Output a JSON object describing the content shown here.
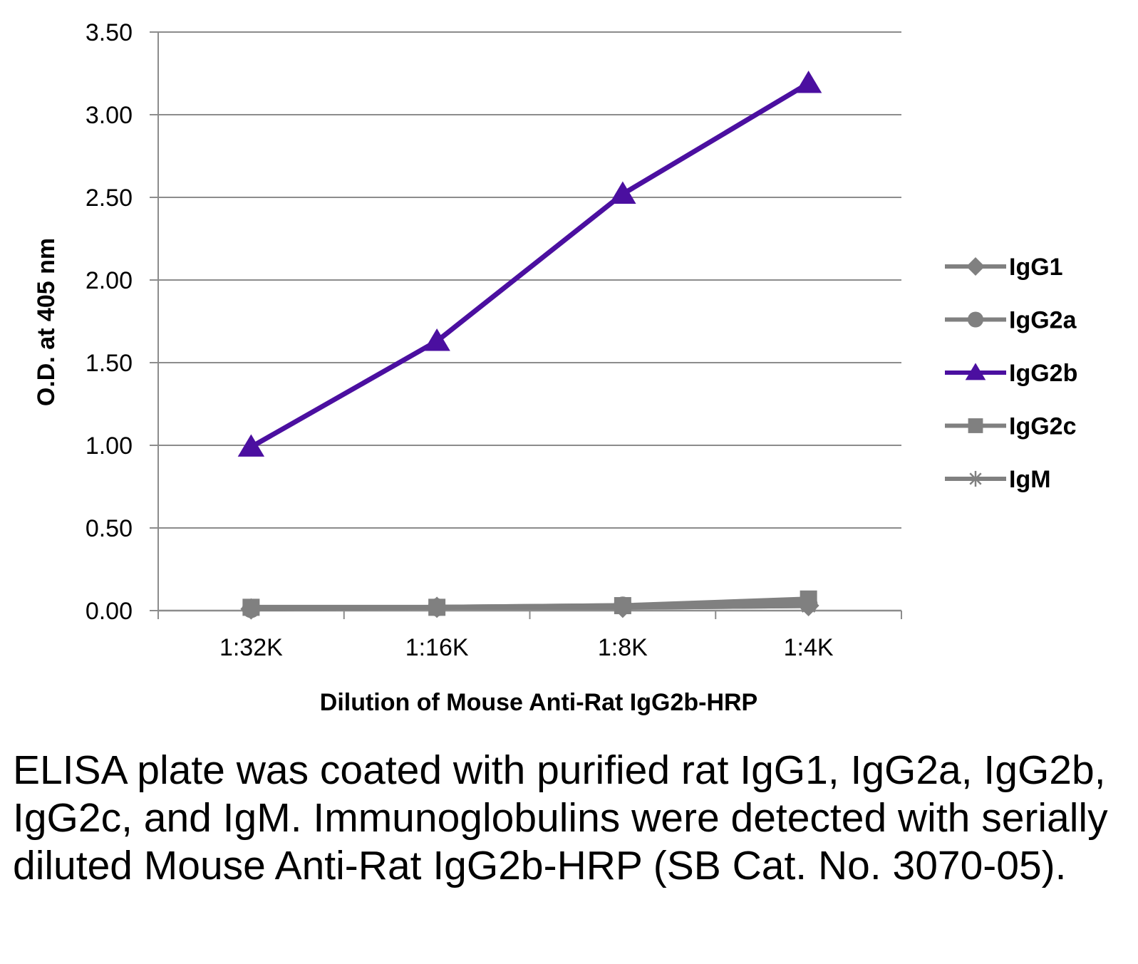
{
  "chart_data": {
    "type": "line",
    "categories": [
      "1:32K",
      "1:16K",
      "1:8K",
      "1:4K"
    ],
    "series": [
      {
        "name": "IgG1",
        "values": [
          0.01,
          0.02,
          0.02,
          0.03
        ],
        "color": "#808080",
        "marker": "diamond"
      },
      {
        "name": "IgG2a",
        "values": [
          0.01,
          0.02,
          0.03,
          0.04
        ],
        "color": "#808080",
        "marker": "circle"
      },
      {
        "name": "IgG2b",
        "values": [
          0.99,
          1.63,
          2.52,
          3.19
        ],
        "color": "#4B0FA0",
        "marker": "triangle"
      },
      {
        "name": "IgG2c",
        "values": [
          0.02,
          0.02,
          0.03,
          0.07
        ],
        "color": "#808080",
        "marker": "square"
      },
      {
        "name": "IgM",
        "values": [
          0.01,
          0.02,
          0.02,
          0.03
        ],
        "color": "#808080",
        "marker": "star"
      }
    ],
    "ylim": [
      0,
      3.5
    ],
    "yticks": [
      "0.00",
      "0.50",
      "1.00",
      "1.50",
      "2.00",
      "2.50",
      "3.00",
      "3.50"
    ],
    "xlabel": "Dilution of Mouse Anti-Rat IgG2b-HRP",
    "ylabel": "O.D. at 405 nm",
    "grid": true,
    "legend": "right"
  },
  "caption": "ELISA plate was coated with purified rat IgG1, IgG2a, IgG2b, IgG2c, and IgM.  Immunoglobulins were detected with serially diluted Mouse Anti-Rat IgG2b-HRP (SB Cat. No. 3070-05)."
}
